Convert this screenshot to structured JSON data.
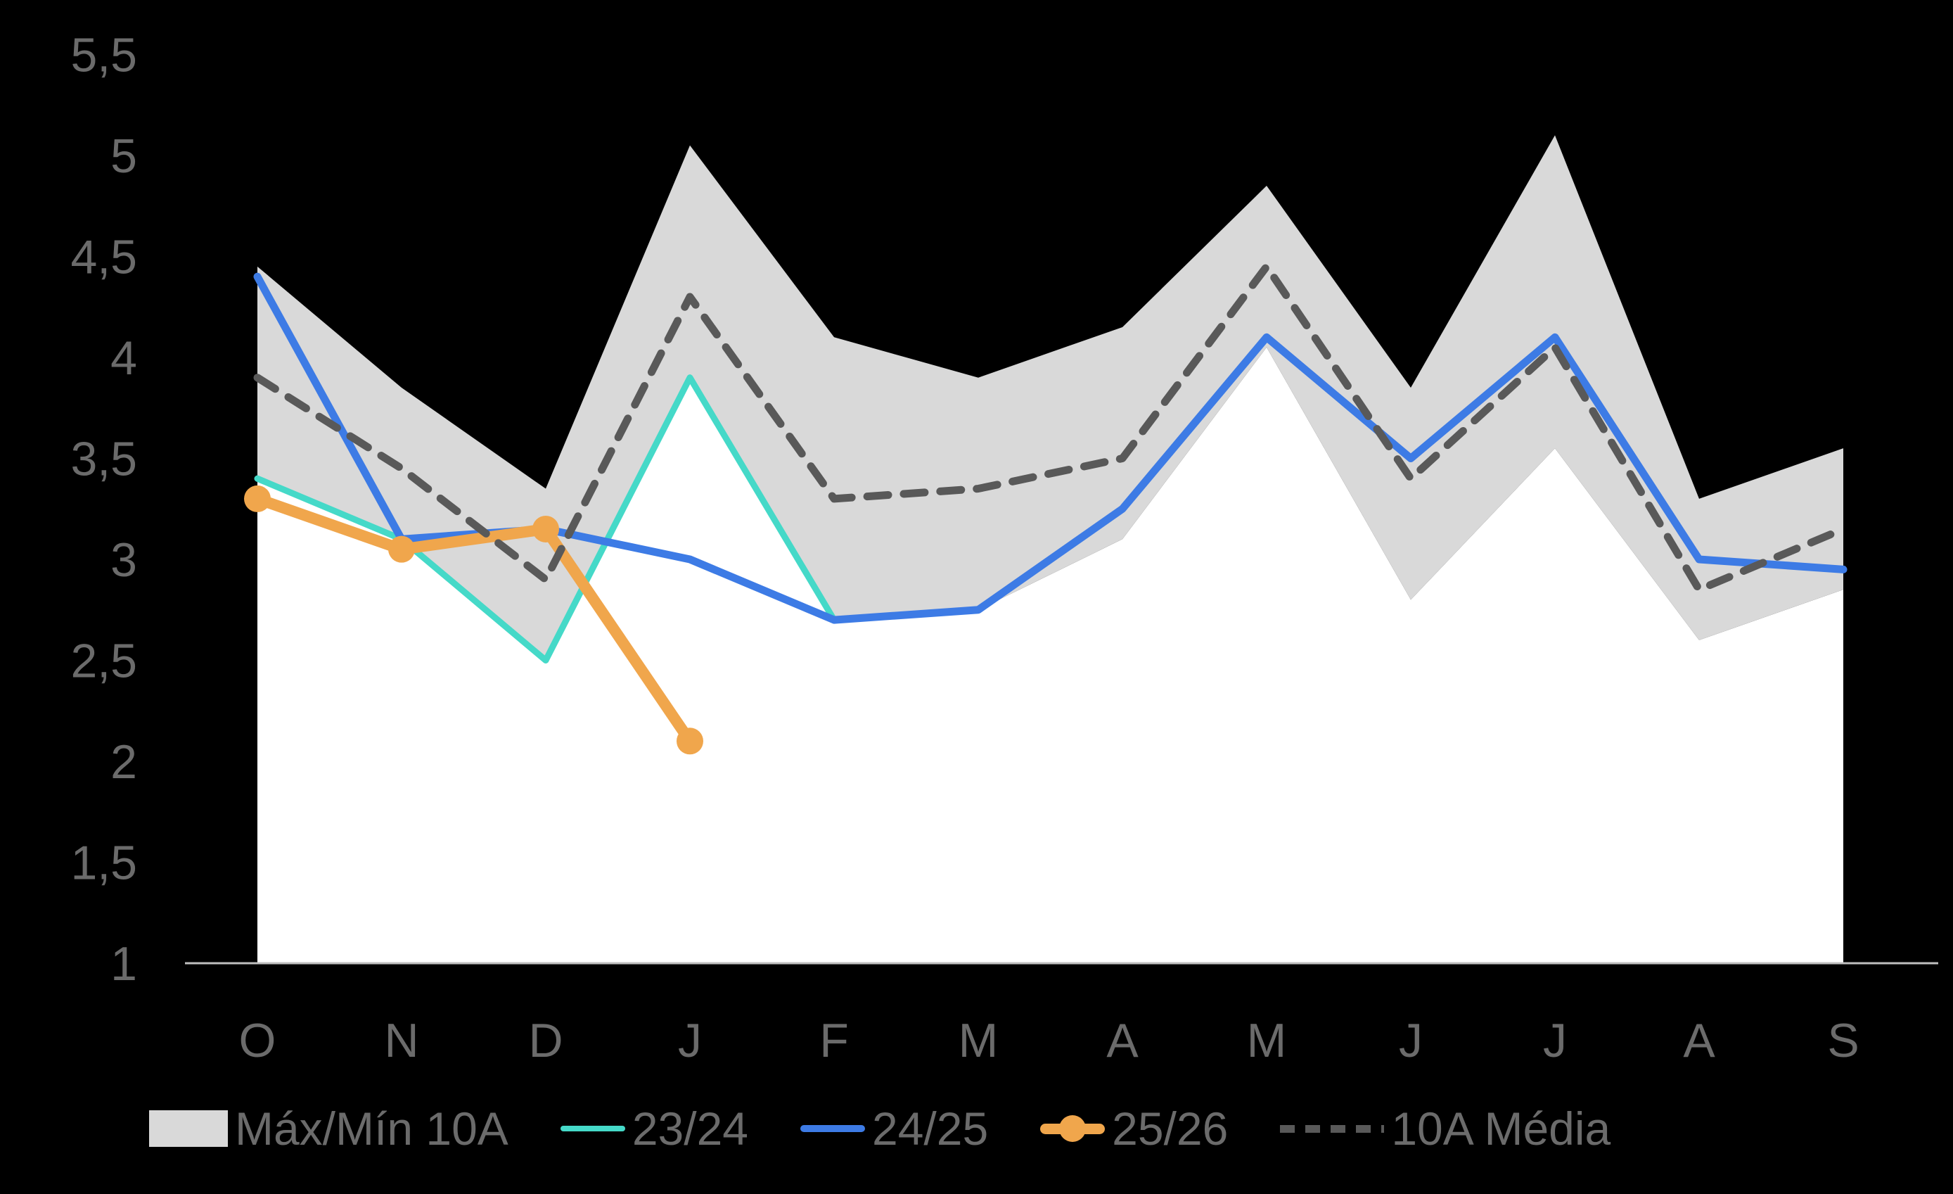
{
  "app": {
    "background": "#000000",
    "plot_background": "#FFFFFF"
  },
  "axis": {
    "text_color": "#6b6b6b",
    "line_color": "#BFBFBF",
    "x_labels": [
      "O",
      "N",
      "D",
      "J",
      "F",
      "M",
      "A",
      "M",
      "J",
      "J",
      "A",
      "S"
    ],
    "y_labels": [
      "1",
      "1,5",
      "2",
      "2,5",
      "3",
      "3,5",
      "4",
      "4,5",
      "5",
      "5,5"
    ]
  },
  "chart_data": {
    "type": "line",
    "title": "",
    "xlabel": "",
    "ylabel": "",
    "categories": [
      "O",
      "N",
      "D",
      "J",
      "F",
      "M",
      "A",
      "M",
      "J",
      "J",
      "A",
      "S"
    ],
    "ylim": [
      1,
      5.5
    ],
    "y_tick_step": 0.5,
    "y_tick_labels": [
      "1",
      "1,5",
      "2",
      "2,5",
      "3",
      "3,5",
      "4",
      "4,5",
      "5",
      "5,5"
    ],
    "grid": false,
    "legend_position": "bottom",
    "band": {
      "name": "Máx/Mín 10A",
      "color": "#D9D9D9",
      "fill_below_min": "#FFFFFF",
      "max": [
        4.45,
        3.85,
        3.35,
        5.05,
        4.1,
        3.9,
        4.15,
        4.85,
        3.85,
        5.1,
        3.3,
        3.55
      ],
      "min": [
        3.4,
        3.1,
        2.5,
        3.9,
        2.7,
        2.75,
        3.1,
        4.05,
        2.8,
        3.55,
        2.6,
        2.85
      ]
    },
    "series": [
      {
        "name": "23/24",
        "color": "#45D9C8",
        "style": "solid",
        "width": 9,
        "marker": false,
        "values": [
          3.4,
          3.1,
          2.5,
          3.9,
          2.7,
          null,
          null,
          null,
          null,
          null,
          null,
          null
        ]
      },
      {
        "name": "24/25",
        "color": "#3D7BE5",
        "style": "solid",
        "width": 11,
        "marker": false,
        "values": [
          4.4,
          3.1,
          3.15,
          3.0,
          2.7,
          2.75,
          3.25,
          4.1,
          3.5,
          4.1,
          3.0,
          2.95
        ]
      },
      {
        "name": "25/26",
        "color": "#F0A64C",
        "style": "solid",
        "width": 16,
        "marker": true,
        "marker_radius": 19,
        "values": [
          3.3,
          3.05,
          3.15,
          2.1,
          null,
          null,
          null,
          null,
          null,
          null,
          null,
          null
        ]
      },
      {
        "name": "10A Média",
        "color": "#595959",
        "style": "dashed",
        "width": 11,
        "marker": false,
        "values": [
          3.9,
          3.45,
          2.9,
          4.3,
          3.3,
          3.35,
          3.5,
          4.45,
          3.4,
          4.05,
          2.85,
          3.15
        ]
      }
    ]
  },
  "legend": {
    "items": [
      {
        "label": "Máx/Mín 10A",
        "swatch": "band"
      },
      {
        "label": "23/24",
        "swatch": "line",
        "color": "#45D9C8",
        "height": 8
      },
      {
        "label": "24/25",
        "swatch": "line",
        "color": "#3D7BE5",
        "height": 10
      },
      {
        "label": "25/26",
        "swatch": "orange-marker",
        "color": "#F0A64C"
      },
      {
        "label": "10A Média",
        "swatch": "dashed",
        "color": "#595959"
      }
    ]
  }
}
